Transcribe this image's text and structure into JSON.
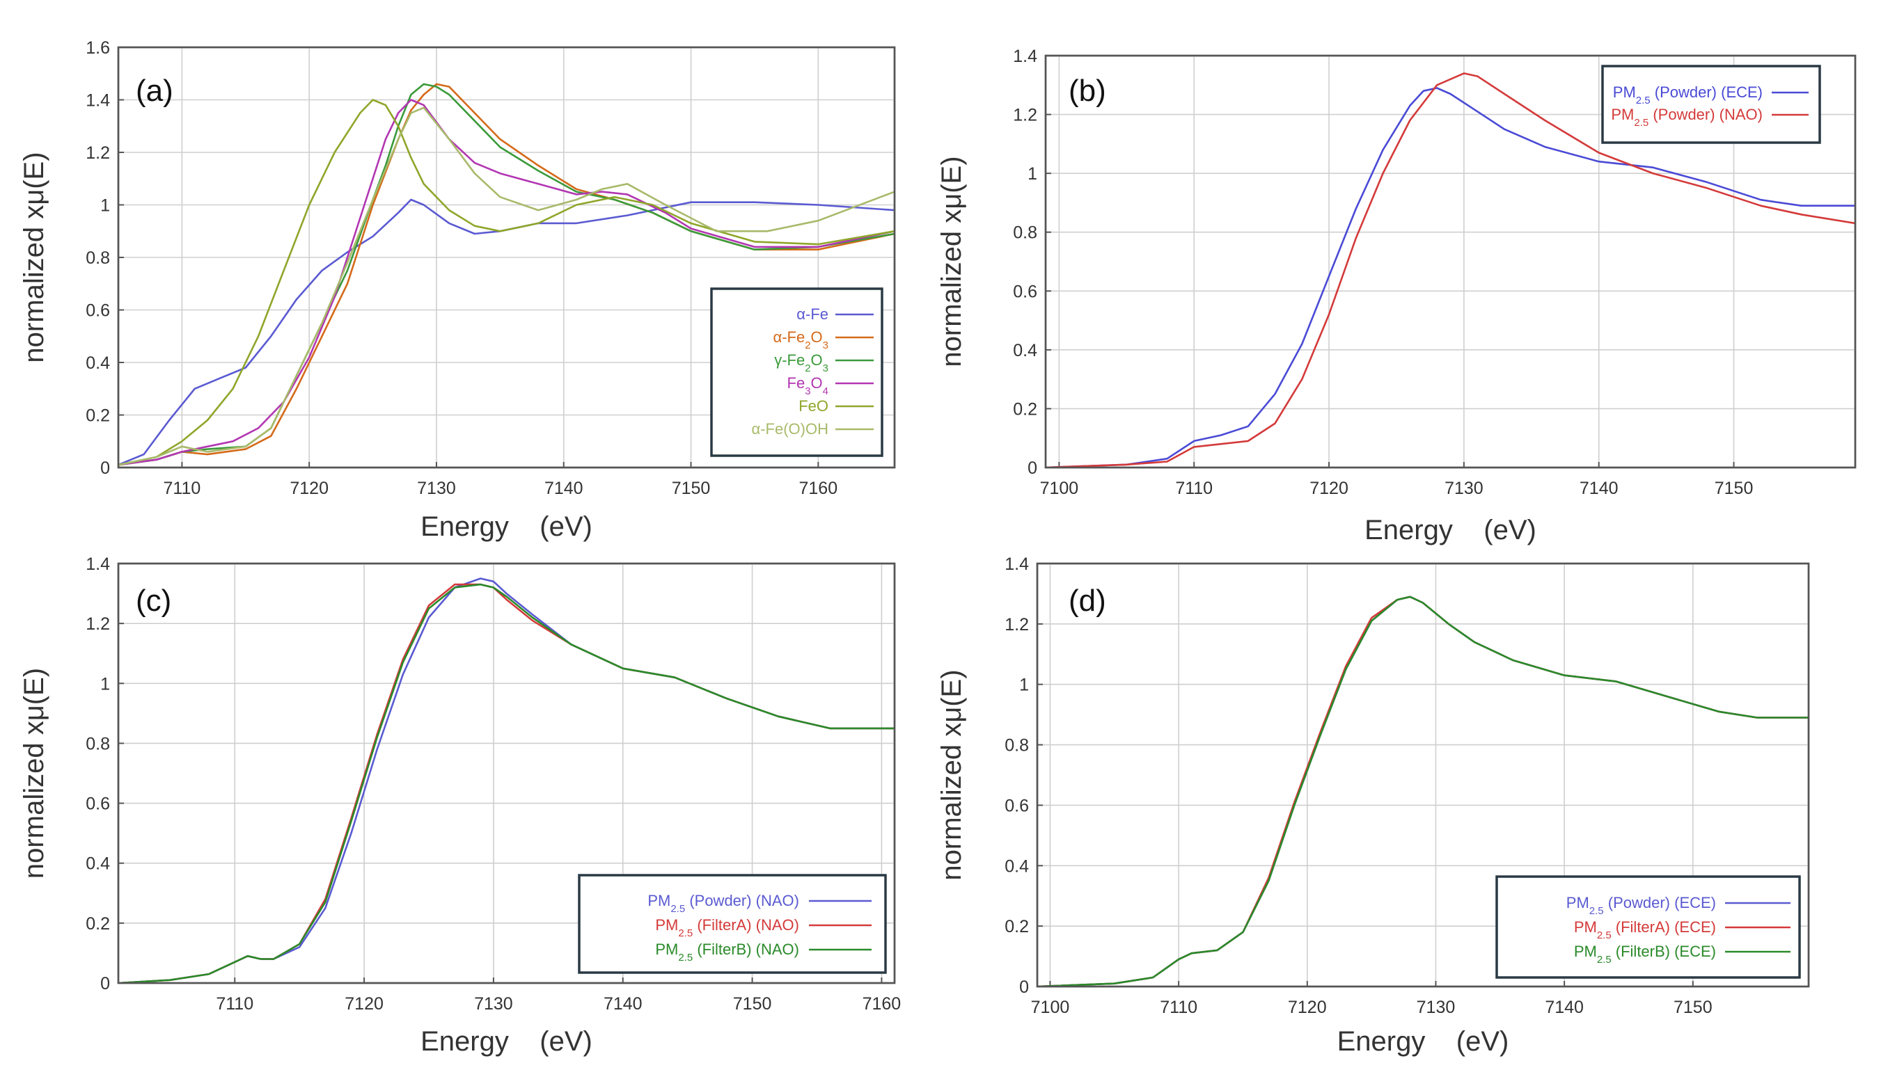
{
  "chart_data": [
    {
      "panel": "(a)",
      "type": "line",
      "xlabel": "Energy (eV)",
      "ylabel": "normalized xμ(E)",
      "xlim": [
        7105,
        7166
      ],
      "ylim": [
        0,
        1.6
      ],
      "xticks": [
        7110,
        7120,
        7130,
        7140,
        7150,
        7160
      ],
      "yticks": [
        0,
        0.2,
        0.4,
        0.6,
        0.8,
        1,
        1.2,
        1.4,
        1.6
      ],
      "grid": true,
      "legend_position": "lower-right",
      "series": [
        {
          "name": "α-Fe",
          "color": "#5a5ad2",
          "x": [
            7105,
            7107,
            7109,
            7111,
            7113,
            7115,
            7117,
            7119,
            7121,
            7123,
            7125,
            7127,
            7128,
            7129,
            7131,
            7133,
            7135,
            7138,
            7141,
            7145,
            7150,
            7155,
            7160,
            7166
          ],
          "y": [
            0.01,
            0.05,
            0.18,
            0.3,
            0.34,
            0.38,
            0.5,
            0.64,
            0.75,
            0.82,
            0.88,
            0.97,
            1.02,
            1.0,
            0.93,
            0.89,
            0.9,
            0.93,
            0.93,
            0.96,
            1.01,
            1.01,
            1.0,
            0.98
          ]
        },
        {
          "name": "α-Fe2O3",
          "color": "#d46a1a",
          "x": [
            7105,
            7108,
            7110,
            7112,
            7115,
            7117,
            7119,
            7121,
            7123,
            7125,
            7127,
            7128,
            7129,
            7130,
            7131,
            7133,
            7135,
            7138,
            7141,
            7144,
            7147,
            7150,
            7155,
            7160,
            7166
          ],
          "y": [
            0.01,
            0.03,
            0.06,
            0.05,
            0.07,
            0.12,
            0.3,
            0.5,
            0.7,
            1.0,
            1.25,
            1.36,
            1.42,
            1.46,
            1.45,
            1.35,
            1.25,
            1.15,
            1.06,
            1.02,
            0.97,
            0.9,
            0.83,
            0.83,
            0.89
          ]
        },
        {
          "name": "γ-Fe2O3",
          "color": "#3a9a3a",
          "x": [
            7105,
            7108,
            7110,
            7112,
            7115,
            7117,
            7119,
            7121,
            7123,
            7125,
            7126,
            7127,
            7128,
            7129,
            7130,
            7131,
            7133,
            7135,
            7138,
            7141,
            7144,
            7147,
            7150,
            7155,
            7160,
            7166
          ],
          "y": [
            0.01,
            0.03,
            0.06,
            0.07,
            0.08,
            0.15,
            0.35,
            0.55,
            0.75,
            1.02,
            1.15,
            1.3,
            1.42,
            1.46,
            1.45,
            1.42,
            1.32,
            1.22,
            1.13,
            1.05,
            1.02,
            0.97,
            0.9,
            0.83,
            0.84,
            0.89
          ]
        },
        {
          "name": "Fe3O4",
          "color": "#b236b2",
          "x": [
            7105,
            7108,
            7110,
            7112,
            7114,
            7116,
            7118,
            7120,
            7122,
            7124,
            7126,
            7127,
            7128,
            7129,
            7131,
            7133,
            7135,
            7138,
            7141,
            7143,
            7145,
            7148,
            7150,
            7155,
            7160,
            7166
          ],
          "y": [
            0.01,
            0.03,
            0.06,
            0.08,
            0.1,
            0.15,
            0.25,
            0.42,
            0.65,
            0.95,
            1.25,
            1.35,
            1.4,
            1.38,
            1.25,
            1.16,
            1.12,
            1.08,
            1.04,
            1.05,
            1.04,
            0.97,
            0.91,
            0.84,
            0.84,
            0.9
          ]
        },
        {
          "name": "FeO",
          "color": "#8fa62a",
          "x": [
            7105,
            7108,
            7110,
            7112,
            7114,
            7116,
            7118,
            7120,
            7122,
            7124,
            7125,
            7126,
            7127,
            7128,
            7129,
            7131,
            7133,
            7135,
            7138,
            7141,
            7144,
            7147,
            7150,
            7155,
            7160,
            7166
          ],
          "y": [
            0.01,
            0.04,
            0.1,
            0.18,
            0.3,
            0.5,
            0.75,
            1.0,
            1.2,
            1.35,
            1.4,
            1.38,
            1.3,
            1.18,
            1.08,
            0.98,
            0.92,
            0.9,
            0.93,
            1.0,
            1.03,
            1.0,
            0.93,
            0.86,
            0.85,
            0.9
          ]
        },
        {
          "name": "α-Fe(O)OH",
          "color": "#a8ba6a",
          "x": [
            7105,
            7108,
            7110,
            7112,
            7115,
            7117,
            7119,
            7121,
            7123,
            7125,
            7127,
            7128,
            7129,
            7131,
            7133,
            7135,
            7138,
            7141,
            7143,
            7145,
            7148,
            7152,
            7156,
            7160,
            7166
          ],
          "y": [
            0.01,
            0.04,
            0.08,
            0.06,
            0.08,
            0.15,
            0.35,
            0.55,
            0.78,
            1.02,
            1.25,
            1.35,
            1.37,
            1.25,
            1.12,
            1.03,
            0.98,
            1.02,
            1.06,
            1.08,
            1.0,
            0.9,
            0.9,
            0.94,
            1.05
          ]
        }
      ],
      "legend_entries": [
        "α-Fe",
        "α-Fe₂O₃",
        "γ-Fe₂O₃",
        "Fe₃O₄",
        "FeO",
        "α-Fe(O)OH"
      ]
    },
    {
      "panel": "(b)",
      "type": "line",
      "xlabel": "Energy (eV)",
      "ylabel": "normalized xμ(E)",
      "xlim": [
        7099,
        7159
      ],
      "ylim": [
        0,
        1.4
      ],
      "xticks": [
        7100,
        7110,
        7120,
        7130,
        7140,
        7150
      ],
      "yticks": [
        0,
        0.2,
        0.4,
        0.6,
        0.8,
        1,
        1.2,
        1.4
      ],
      "grid": true,
      "legend_position": "top-right",
      "series": [
        {
          "name": "PM₂.₅ (Powder) (ECE)",
          "color": "#4a4ad6",
          "x": [
            7099,
            7105,
            7108,
            7110,
            7112,
            7114,
            7116,
            7118,
            7120,
            7122,
            7124,
            7126,
            7127,
            7128,
            7129,
            7131,
            7133,
            7136,
            7140,
            7144,
            7148,
            7152,
            7155,
            7159
          ],
          "y": [
            0.0,
            0.01,
            0.03,
            0.09,
            0.11,
            0.14,
            0.25,
            0.42,
            0.65,
            0.88,
            1.08,
            1.23,
            1.28,
            1.29,
            1.27,
            1.21,
            1.15,
            1.09,
            1.04,
            1.02,
            0.97,
            0.91,
            0.89,
            0.89
          ]
        },
        {
          "name": "PM₂.₅ (Powder) (NAO)",
          "color": "#d43a3a",
          "x": [
            7099,
            7105,
            7108,
            7110,
            7112,
            7114,
            7116,
            7118,
            7120,
            7122,
            7124,
            7126,
            7128,
            7130,
            7131,
            7133,
            7136,
            7140,
            7144,
            7148,
            7152,
            7155,
            7159
          ],
          "y": [
            0.0,
            0.01,
            0.02,
            0.07,
            0.08,
            0.09,
            0.15,
            0.3,
            0.52,
            0.78,
            1.0,
            1.18,
            1.3,
            1.34,
            1.33,
            1.27,
            1.18,
            1.07,
            1.0,
            0.95,
            0.89,
            0.86,
            0.83
          ]
        }
      ],
      "legend_entries": [
        "PM₂.₅ (Powder) (ECE)",
        "PM₂.₅ (Powder) (NAO)"
      ]
    },
    {
      "panel": "(c)",
      "type": "line",
      "xlabel": "Energy (eV)",
      "ylabel": "normalized xμ(E)",
      "xlim": [
        7101,
        7161
      ],
      "ylim": [
        0,
        1.4
      ],
      "xticks": [
        7110,
        7120,
        7130,
        7140,
        7150,
        7160
      ],
      "yticks": [
        0,
        0.2,
        0.4,
        0.6,
        0.8,
        1,
        1.2,
        1.4
      ],
      "grid": true,
      "legend_position": "lower-right",
      "series": [
        {
          "name": "PM₂.₅ (Powder) (NAO)",
          "color": "#5a5ad2",
          "x": [
            7101,
            7105,
            7108,
            7110,
            7111,
            7112,
            7113,
            7115,
            7117,
            7119,
            7121,
            7123,
            7125,
            7127,
            7129,
            7130,
            7131,
            7133,
            7136,
            7140,
            7144,
            7148,
            7152,
            7156,
            7161
          ],
          "y": [
            0.0,
            0.01,
            0.03,
            0.07,
            0.09,
            0.08,
            0.08,
            0.12,
            0.25,
            0.5,
            0.78,
            1.03,
            1.22,
            1.32,
            1.35,
            1.34,
            1.3,
            1.23,
            1.13,
            1.05,
            1.02,
            0.95,
            0.89,
            0.85,
            0.85
          ]
        },
        {
          "name": "PM₂.₅ (FilterA) (NAO)",
          "color": "#d43a3a",
          "x": [
            7101,
            7105,
            7108,
            7110,
            7111,
            7112,
            7113,
            7115,
            7117,
            7119,
            7121,
            7123,
            7125,
            7127,
            7129,
            7130,
            7131,
            7133,
            7136,
            7140,
            7144,
            7148,
            7152,
            7156,
            7161
          ],
          "y": [
            0.0,
            0.01,
            0.03,
            0.07,
            0.09,
            0.08,
            0.08,
            0.13,
            0.28,
            0.55,
            0.83,
            1.08,
            1.26,
            1.33,
            1.33,
            1.32,
            1.28,
            1.21,
            1.13,
            1.05,
            1.02,
            0.95,
            0.89,
            0.85,
            0.85
          ]
        },
        {
          "name": "PM₂.₅ (FilterB) (NAO)",
          "color": "#2a8a2a",
          "x": [
            7101,
            7105,
            7108,
            7110,
            7111,
            7112,
            7113,
            7115,
            7117,
            7119,
            7121,
            7123,
            7125,
            7127,
            7129,
            7130,
            7131,
            7133,
            7136,
            7140,
            7144,
            7148,
            7152,
            7156,
            7161
          ],
          "y": [
            0.0,
            0.01,
            0.03,
            0.07,
            0.09,
            0.08,
            0.08,
            0.13,
            0.27,
            0.54,
            0.82,
            1.07,
            1.25,
            1.32,
            1.33,
            1.32,
            1.29,
            1.22,
            1.13,
            1.05,
            1.02,
            0.95,
            0.89,
            0.85,
            0.85
          ]
        }
      ],
      "legend_entries": [
        "PM₂.₅ (Powder) (NAO)",
        "PM₂.₅ (FilterA) (NAO)",
        "PM₂.₅ (FilterB) (NAO)"
      ]
    },
    {
      "panel": "(d)",
      "type": "line",
      "xlabel": "Energy (eV)",
      "ylabel": "normalized xμ(E)",
      "xlim": [
        7099,
        7159
      ],
      "ylim": [
        0,
        1.4
      ],
      "xticks": [
        7100,
        7110,
        7120,
        7130,
        7140,
        7150
      ],
      "yticks": [
        0,
        0.2,
        0.4,
        0.6,
        0.8,
        1,
        1.2,
        1.4
      ],
      "grid": true,
      "legend_position": "lower-right",
      "series": [
        {
          "name": "PM₂.₅ (Powder) (ECE)",
          "color": "#5a5ad2",
          "x": [
            7099,
            7105,
            7108,
            7110,
            7111,
            7113,
            7115,
            7117,
            7119,
            7121,
            7123,
            7125,
            7127,
            7128,
            7129,
            7131,
            7133,
            7136,
            7140,
            7144,
            7148,
            7152,
            7155,
            7159
          ],
          "y": [
            0.0,
            0.01,
            0.03,
            0.09,
            0.11,
            0.12,
            0.18,
            0.35,
            0.6,
            0.83,
            1.05,
            1.21,
            1.28,
            1.29,
            1.27,
            1.2,
            1.14,
            1.08,
            1.03,
            1.01,
            0.96,
            0.91,
            0.89,
            0.89
          ]
        },
        {
          "name": "PM₂.₅ (FilterA) (ECE)",
          "color": "#d43a3a",
          "x": [
            7099,
            7105,
            7108,
            7110,
            7111,
            7113,
            7115,
            7117,
            7119,
            7121,
            7123,
            7125,
            7127,
            7128,
            7129,
            7131,
            7133,
            7136,
            7140,
            7144,
            7148,
            7152,
            7155,
            7159
          ],
          "y": [
            0.0,
            0.01,
            0.03,
            0.09,
            0.11,
            0.12,
            0.18,
            0.36,
            0.61,
            0.84,
            1.06,
            1.22,
            1.28,
            1.29,
            1.27,
            1.2,
            1.14,
            1.08,
            1.03,
            1.01,
            0.96,
            0.91,
            0.89,
            0.89
          ]
        },
        {
          "name": "PM₂.₅ (FilterB) (ECE)",
          "color": "#2a8a2a",
          "x": [
            7099,
            7105,
            7108,
            7110,
            7111,
            7113,
            7115,
            7117,
            7119,
            7121,
            7123,
            7125,
            7127,
            7128,
            7129,
            7131,
            7133,
            7136,
            7140,
            7144,
            7148,
            7152,
            7155,
            7159
          ],
          "y": [
            0.0,
            0.01,
            0.03,
            0.09,
            0.11,
            0.12,
            0.18,
            0.35,
            0.6,
            0.83,
            1.05,
            1.21,
            1.28,
            1.29,
            1.27,
            1.2,
            1.14,
            1.08,
            1.03,
            1.01,
            0.96,
            0.91,
            0.89,
            0.89
          ]
        }
      ],
      "legend_entries": [
        "PM₂.₅ (Powder) (ECE)",
        "PM₂.₅ (FilterA) (ECE)",
        "PM₂.₅ (FilterB) (ECE)"
      ]
    }
  ]
}
